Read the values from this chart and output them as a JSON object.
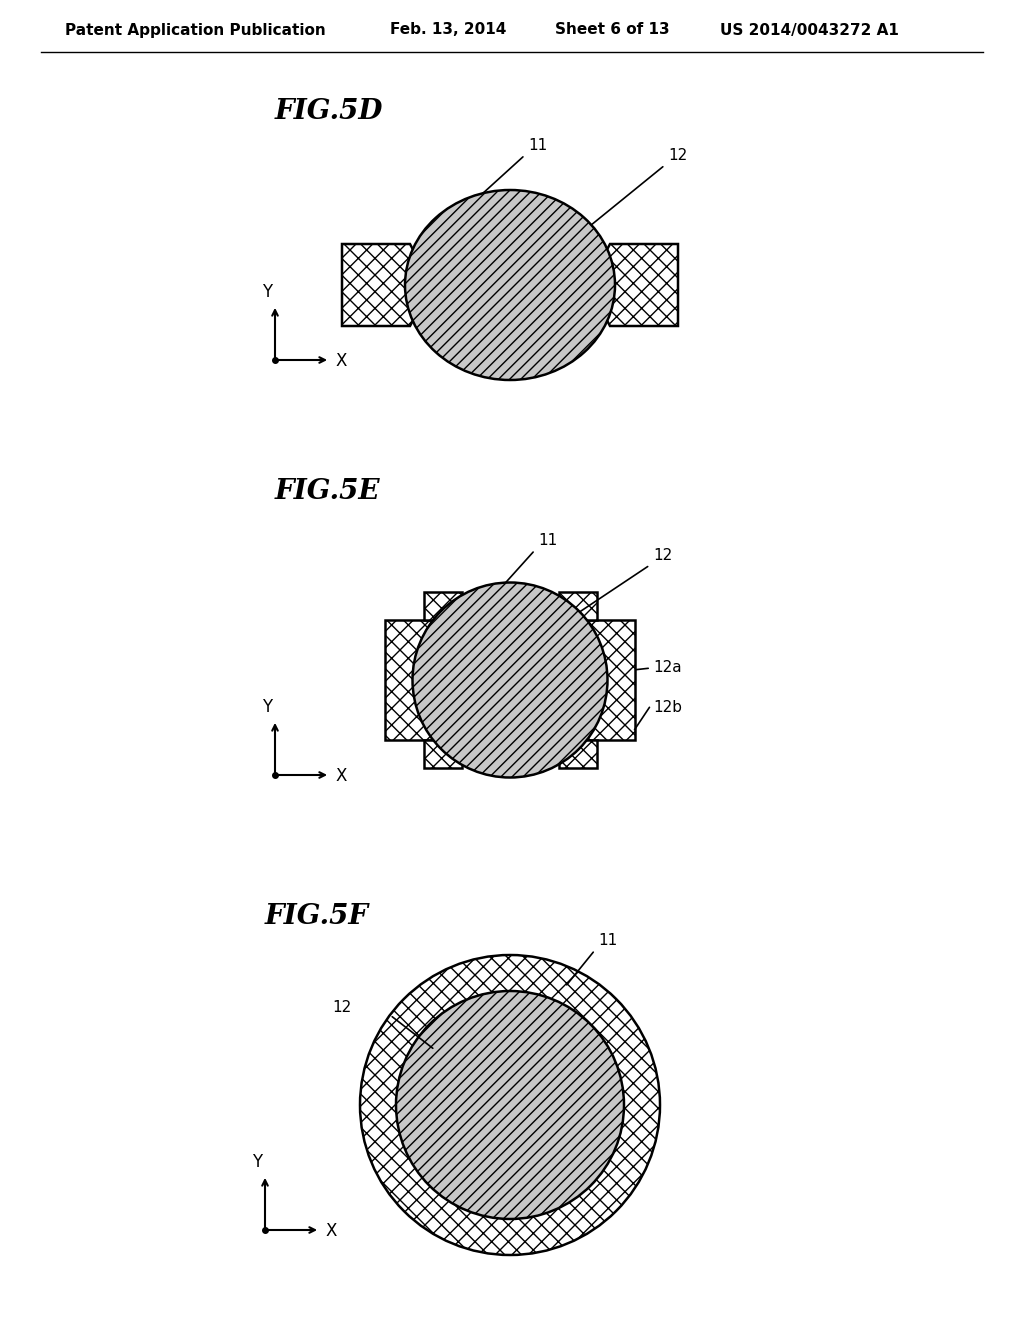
{
  "bg_color": "#ffffff",
  "header_text": "Patent Application Publication",
  "header_date": "Feb. 13, 2014",
  "header_sheet": "Sheet 6 of 13",
  "header_patent": "US 2014/0043272 A1",
  "fig5d_label": "FIG.5D",
  "fig5e_label": "FIG.5E",
  "fig5f_label": "FIG.5F",
  "label_11": "11",
  "label_12": "12",
  "label_12a": "12a",
  "label_12b": "12b",
  "hatch_crosshatch": "xx",
  "hatch_diagonal": "///",
  "line_color": "#000000",
  "fill_lens": "#c8c8c8"
}
